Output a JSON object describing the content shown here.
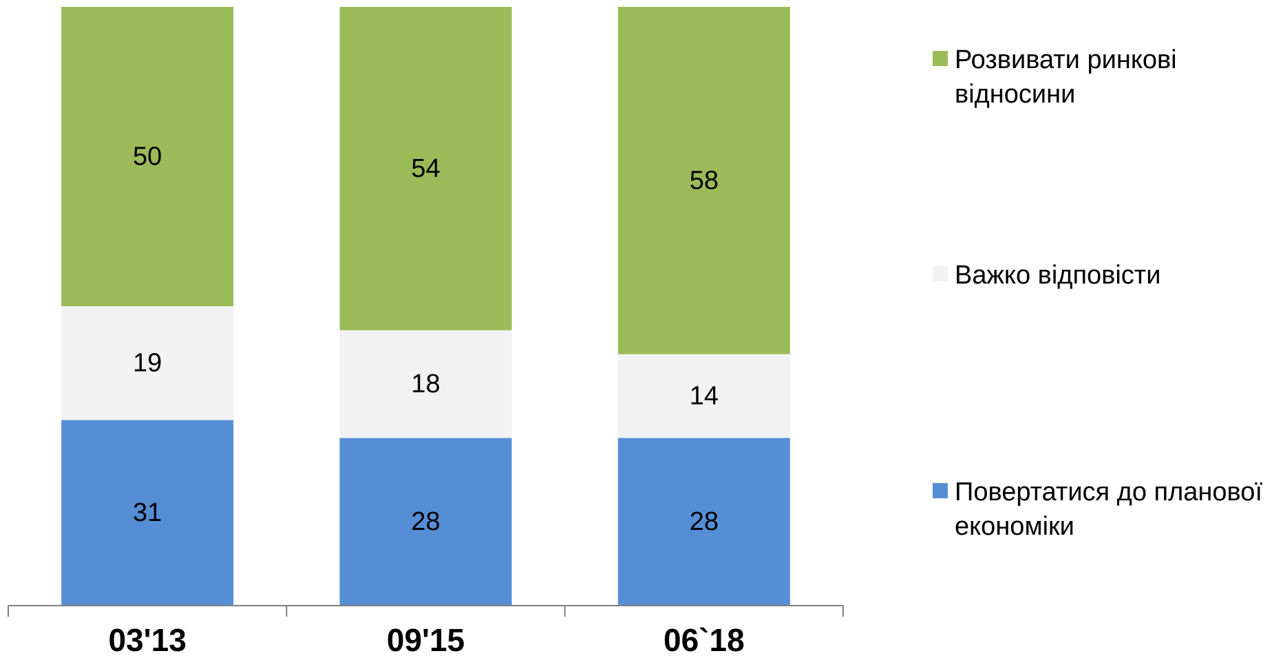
{
  "chart_data": {
    "type": "bar",
    "stacked": true,
    "categories": [
      "03'13",
      "09'15",
      "06`18"
    ],
    "series": [
      {
        "name": "Повертатися до планової економіки",
        "color": "#558ed5",
        "values": [
          31,
          28,
          28
        ]
      },
      {
        "name": "Важко відповісти",
        "color": "#f2f2f2",
        "values": [
          19,
          18,
          14
        ]
      },
      {
        "name": "Розвивати ринкові відносини",
        "color": "#9bbb59",
        "values": [
          50,
          54,
          58
        ]
      }
    ],
    "legend_order": [
      2,
      1,
      0
    ],
    "legend_placement": "right",
    "ylim": [
      0,
      100
    ],
    "grid": false,
    "title": "",
    "xlabel": "",
    "ylabel": ""
  }
}
